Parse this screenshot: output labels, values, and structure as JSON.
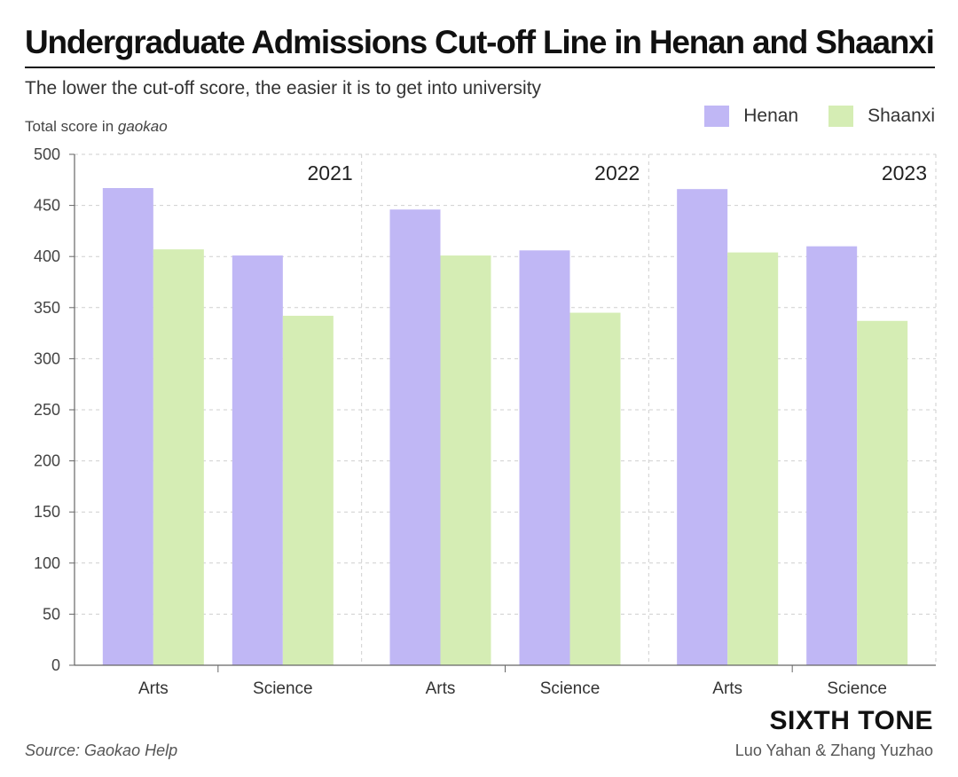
{
  "header": {
    "title": "Undergraduate Admissions Cut-off Line in Henan and Shaanxi",
    "subtitle": "The lower the cut-off score, the easier it is to get into university"
  },
  "footer": {
    "brand": "SIXTH TONE",
    "source": "Source: Gaokao Help",
    "credit": "Luo Yahan & Zhang Yuzhao"
  },
  "chart_data": {
    "type": "bar",
    "ylabel_prefix": "Total score in ",
    "ylabel_emphasis": "gaokao",
    "ylim": [
      0,
      500
    ],
    "yticks": [
      0,
      50,
      100,
      150,
      200,
      250,
      300,
      350,
      400,
      450,
      500
    ],
    "grid": true,
    "legend_position": "top-right",
    "groups": [
      "2021",
      "2022",
      "2023"
    ],
    "categories": [
      "Arts",
      "Science"
    ],
    "series": [
      {
        "name": "Henan",
        "color": "#c0b7f5",
        "values": [
          [
            467,
            401
          ],
          [
            446,
            406
          ],
          [
            466,
            410
          ]
        ]
      },
      {
        "name": "Shaanxi",
        "color": "#d5edb4",
        "values": [
          [
            407,
            342
          ],
          [
            401,
            345
          ],
          [
            404,
            337
          ]
        ]
      }
    ]
  }
}
